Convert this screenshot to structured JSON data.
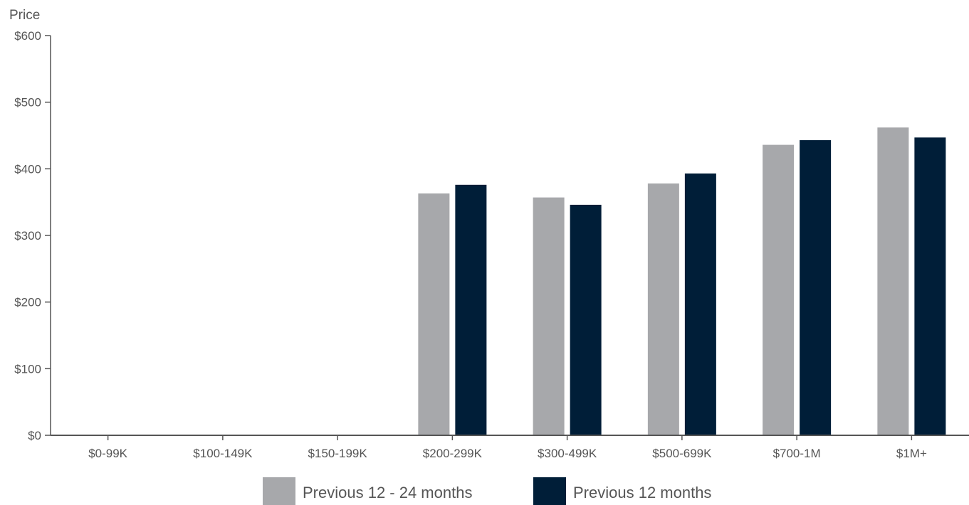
{
  "chart_data": {
    "type": "bar",
    "title": "",
    "xlabel": "",
    "ylabel": "Price",
    "ylim": [
      0,
      600
    ],
    "yticks": [
      "$0",
      "$100",
      "$200",
      "$300",
      "$400",
      "$500",
      "$600"
    ],
    "ytick_values": [
      0,
      100,
      200,
      300,
      400,
      500,
      600
    ],
    "categories": [
      "$0-99K",
      "$100-149K",
      "$150-199K",
      "$200-299K",
      "$300-499K",
      "$500-699K",
      "$700-1M",
      "$1M+"
    ],
    "series": [
      {
        "name": "Previous 12 - 24 months",
        "color": "#a7a8ab",
        "values": [
          null,
          null,
          null,
          363,
          357,
          378,
          436,
          462
        ]
      },
      {
        "name": "Previous 12 months",
        "color": "#001e38",
        "values": [
          null,
          null,
          null,
          376,
          346,
          393,
          443,
          447
        ]
      }
    ],
    "grid": false,
    "legend_position": "bottom-center"
  }
}
